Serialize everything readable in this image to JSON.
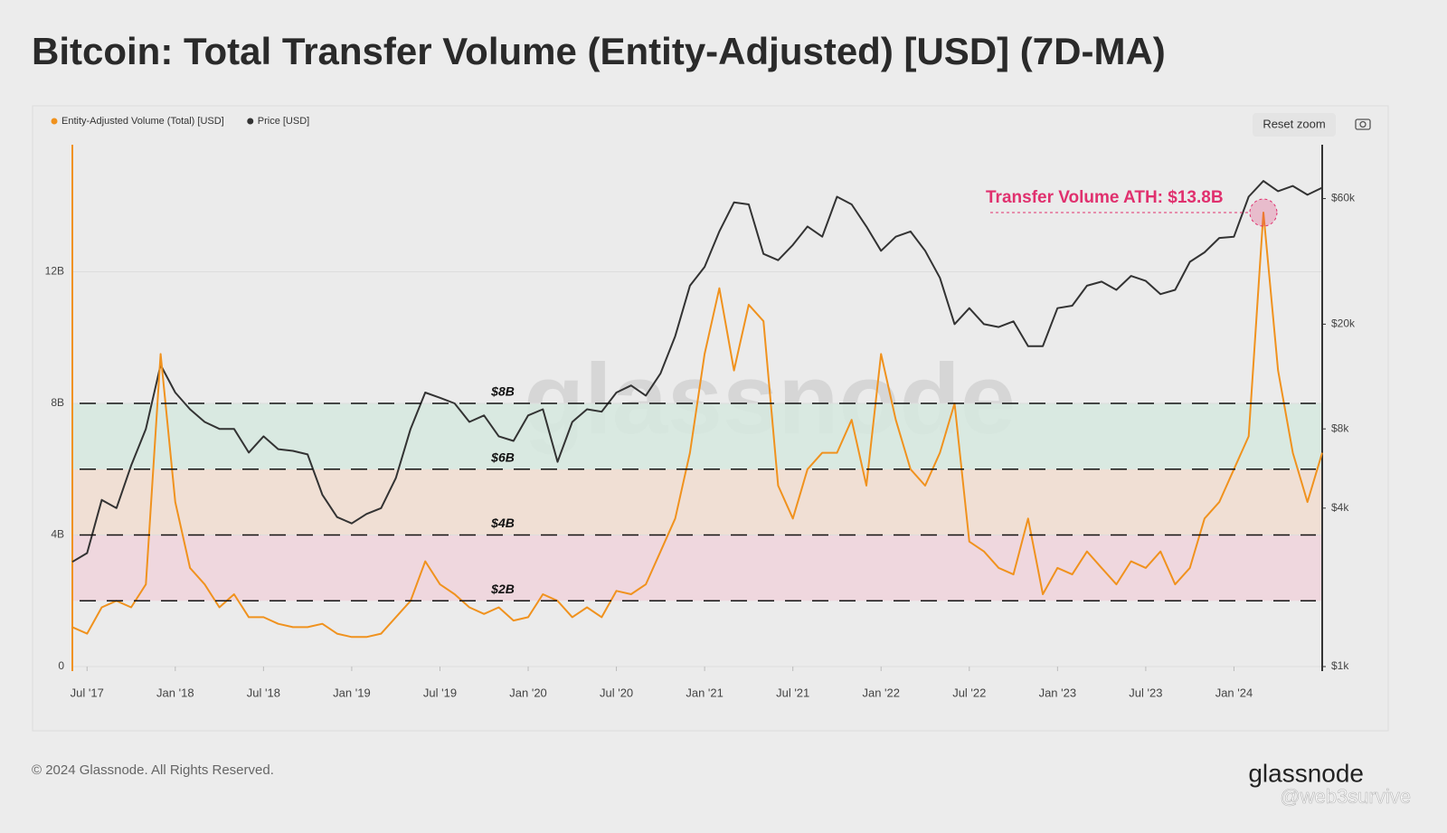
{
  "chart_data": {
    "type": "line",
    "title": "Bitcoin: Total Transfer Volume (Entity-Adjusted) [USD] (7D-MA)",
    "x": [
      "2017-06",
      "2017-07",
      "2017-08",
      "2017-09",
      "2017-10",
      "2017-11",
      "2017-12",
      "2018-01",
      "2018-02",
      "2018-03",
      "2018-04",
      "2018-05",
      "2018-06",
      "2018-07",
      "2018-08",
      "2018-09",
      "2018-10",
      "2018-11",
      "2018-12",
      "2019-01",
      "2019-02",
      "2019-03",
      "2019-04",
      "2019-05",
      "2019-06",
      "2019-07",
      "2019-08",
      "2019-09",
      "2019-10",
      "2019-11",
      "2019-12",
      "2020-01",
      "2020-02",
      "2020-03",
      "2020-04",
      "2020-05",
      "2020-06",
      "2020-07",
      "2020-08",
      "2020-09",
      "2020-10",
      "2020-11",
      "2020-12",
      "2021-01",
      "2021-02",
      "2021-03",
      "2021-04",
      "2021-05",
      "2021-06",
      "2021-07",
      "2021-08",
      "2021-09",
      "2021-10",
      "2021-11",
      "2021-12",
      "2022-01",
      "2022-02",
      "2022-03",
      "2022-04",
      "2022-05",
      "2022-06",
      "2022-07",
      "2022-08",
      "2022-09",
      "2022-10",
      "2022-11",
      "2022-12",
      "2023-01",
      "2023-02",
      "2023-03",
      "2023-04",
      "2023-05",
      "2023-06",
      "2023-07",
      "2023-08",
      "2023-09",
      "2023-10",
      "2023-11",
      "2023-12",
      "2024-01",
      "2024-02",
      "2024-03",
      "2024-04",
      "2024-05",
      "2024-06",
      "2024-07"
    ],
    "series": [
      {
        "name": "Entity-Adjusted Volume (Total) [USD]",
        "color": "#f0921e",
        "values": [
          1.2,
          1.0,
          1.8,
          2.0,
          1.8,
          2.5,
          9.5,
          5.0,
          3.0,
          2.5,
          1.8,
          2.2,
          1.5,
          1.5,
          1.3,
          1.2,
          1.2,
          1.3,
          1.0,
          0.9,
          0.9,
          1.0,
          1.5,
          2.0,
          3.2,
          2.5,
          2.2,
          1.8,
          1.6,
          1.8,
          1.4,
          1.5,
          2.2,
          2.0,
          1.5,
          1.8,
          1.5,
          2.3,
          2.2,
          2.5,
          3.5,
          4.5,
          6.5,
          9.5,
          11.5,
          9.0,
          11.0,
          10.5,
          5.5,
          4.5,
          6.0,
          6.5,
          6.5,
          7.5,
          5.5,
          9.5,
          7.5,
          6.0,
          5.5,
          6.5,
          8.0,
          3.8,
          3.5,
          3.0,
          2.8,
          4.5,
          2.2,
          3.0,
          2.8,
          3.5,
          3.0,
          2.5,
          3.2,
          3.0,
          3.5,
          2.5,
          3.0,
          4.5,
          5.0,
          6.0,
          7.0,
          13.8,
          9.0,
          6.5,
          5.0,
          6.5
        ]
      },
      {
        "name": "Price [USD]",
        "color": "#333333",
        "axis": "y2",
        "values": [
          2500,
          2700,
          4300,
          4000,
          5800,
          8000,
          14000,
          11000,
          9500,
          8500,
          8000,
          8000,
          6500,
          7500,
          6700,
          6600,
          6400,
          4500,
          3700,
          3500,
          3800,
          4000,
          5200,
          8000,
          11000,
          10500,
          10000,
          8500,
          9000,
          7500,
          7200,
          9000,
          9500,
          6000,
          8500,
          9500,
          9300,
          11000,
          11700,
          10700,
          13000,
          18000,
          28000,
          33000,
          45000,
          58000,
          57000,
          37000,
          35000,
          40000,
          47000,
          43000,
          61000,
          57000,
          47000,
          38000,
          43000,
          45000,
          38000,
          30000,
          20000,
          23000,
          20000,
          19500,
          20500,
          16500,
          16500,
          23000,
          23500,
          28000,
          29000,
          27000,
          30500,
          29200,
          26000,
          27000,
          34500,
          37500,
          42500,
          43000,
          61000,
          70000,
          64000,
          67000,
          62000,
          66000
        ]
      }
    ],
    "xlim": [
      "2017-06",
      "2024-07"
    ],
    "xticks": [
      {
        "value": "2017-07",
        "label": "Jul '17"
      },
      {
        "value": "2018-01",
        "label": "Jan '18"
      },
      {
        "value": "2018-07",
        "label": "Jul '18"
      },
      {
        "value": "2019-01",
        "label": "Jan '19"
      },
      {
        "value": "2019-07",
        "label": "Jul '19"
      },
      {
        "value": "2020-01",
        "label": "Jan '20"
      },
      {
        "value": "2020-07",
        "label": "Jul '20"
      },
      {
        "value": "2021-01",
        "label": "Jan '21"
      },
      {
        "value": "2021-07",
        "label": "Jul '21"
      },
      {
        "value": "2022-01",
        "label": "Jan '22"
      },
      {
        "value": "2022-07",
        "label": "Jul '22"
      },
      {
        "value": "2023-01",
        "label": "Jan '23"
      },
      {
        "value": "2023-07",
        "label": "Jul '23"
      },
      {
        "value": "2024-01",
        "label": "Jan '24"
      }
    ],
    "ylim": [
      0,
      16
    ],
    "yticks": [
      0,
      {
        "value": 4,
        "label": "4B"
      },
      {
        "value": 8,
        "label": "8B"
      },
      {
        "value": 12,
        "label": "12B"
      }
    ],
    "y2lim": [
      1000,
      100000
    ],
    "y2log": true,
    "y2ticks": [
      {
        "value": 1000,
        "label": "$1k"
      },
      {
        "value": 4000,
        "label": "$4k"
      },
      {
        "value": 8000,
        "label": "$8k"
      },
      {
        "value": 20000,
        "label": "$20k"
      },
      {
        "value": 60000,
        "label": "$60k"
      }
    ],
    "grid": true,
    "bands": [
      {
        "from": 2,
        "to": 4,
        "color": "#f0d3dc"
      },
      {
        "from": 4,
        "to": 6,
        "color": "#f1ddd0"
      },
      {
        "from": 6,
        "to": 8,
        "color": "#d6e9df"
      }
    ],
    "reference_lines": [
      {
        "value": 8,
        "label": "$8B"
      },
      {
        "value": 6,
        "label": "$6B"
      },
      {
        "value": 4,
        "label": "$4B"
      },
      {
        "value": 2,
        "label": "$2B"
      }
    ],
    "annotation": {
      "text": "Transfer Volume ATH: $13.8B",
      "x": "2024-03",
      "value": 13.8,
      "color": "#e0306e"
    }
  },
  "reset_button": "Reset zoom",
  "watermark": "glassnode",
  "footer": "© 2024 Glassnode. All Rights Reserved.",
  "logo": "glassnode",
  "credit": "@web3survive"
}
